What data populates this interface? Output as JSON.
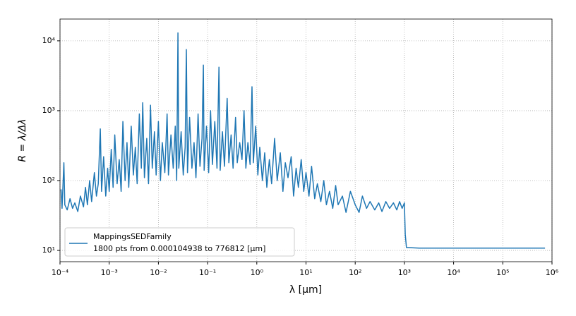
{
  "chart_data": {
    "type": "line",
    "xlabel": "λ [μm]",
    "ylabel": "R = λ/Δλ",
    "xscale": "log",
    "yscale": "log",
    "grid": true,
    "legend": "lower left",
    "xlim": [
      0.0001,
      1000000
    ],
    "ylim": [
      6.9,
      20500
    ],
    "xticks": [
      {
        "value": 0.0001,
        "label": "10⁻⁴"
      },
      {
        "value": 0.001,
        "label": "10⁻³"
      },
      {
        "value": 0.01,
        "label": "10⁻²"
      },
      {
        "value": 0.1,
        "label": "10⁻¹"
      },
      {
        "value": 1,
        "label": "10⁰"
      },
      {
        "value": 10,
        "label": "10¹"
      },
      {
        "value": 100,
        "label": "10²"
      },
      {
        "value": 1000,
        "label": "10³"
      },
      {
        "value": 10000,
        "label": "10⁴"
      },
      {
        "value": 100000,
        "label": "10⁵"
      },
      {
        "value": 1000000,
        "label": "10⁶"
      }
    ],
    "yticks": [
      {
        "value": 10,
        "label": "10¹"
      },
      {
        "value": 100,
        "label": "10²"
      },
      {
        "value": 1000,
        "label": "10³"
      },
      {
        "value": 10000,
        "label": "10⁴"
      }
    ],
    "series": [
      {
        "name": "MappingsSEDFamily",
        "legend_detail": "1800 pts from 0.000104938 to 776812 [μm]",
        "color": "#1f77b4",
        "x": [
          0.000105,
          0.00011,
          0.00012,
          0.000125,
          0.00014,
          0.00016,
          0.00018,
          0.0002,
          0.00023,
          0.00026,
          0.0003,
          0.00033,
          0.00036,
          0.0004,
          0.00044,
          0.0005,
          0.00055,
          0.0006,
          0.00066,
          0.0007,
          0.00077,
          0.00085,
          0.00093,
          0.001,
          0.0011,
          0.0012,
          0.0013,
          0.00145,
          0.0016,
          0.00175,
          0.0019,
          0.0021,
          0.0023,
          0.0025,
          0.0028,
          0.0031,
          0.0034,
          0.0037,
          0.0041,
          0.0045,
          0.0048,
          0.0052,
          0.0058,
          0.0063,
          0.0069,
          0.0075,
          0.0083,
          0.009,
          0.01,
          0.011,
          0.012,
          0.0135,
          0.015,
          0.016,
          0.018,
          0.02,
          0.022,
          0.0235,
          0.025,
          0.026,
          0.029,
          0.032,
          0.035,
          0.037,
          0.039,
          0.043,
          0.048,
          0.053,
          0.058,
          0.064,
          0.07,
          0.077,
          0.082,
          0.085,
          0.095,
          0.105,
          0.115,
          0.125,
          0.14,
          0.155,
          0.17,
          0.18,
          0.2,
          0.22,
          0.25,
          0.27,
          0.3,
          0.33,
          0.37,
          0.4,
          0.45,
          0.5,
          0.55,
          0.6,
          0.66,
          0.73,
          0.8,
          0.85,
          0.95,
          1.05,
          1.15,
          1.3,
          1.45,
          1.6,
          1.8,
          2,
          2.3,
          2.6,
          3,
          3.4,
          3.8,
          4.3,
          5,
          5.6,
          6.3,
          7,
          8,
          9,
          10,
          11.5,
          13,
          15,
          17,
          20,
          23,
          26,
          30,
          35,
          40,
          45,
          55,
          65,
          80,
          100,
          120,
          140,
          170,
          200,
          250,
          300,
          350,
          420,
          500,
          600,
          700,
          800,
          900,
          1000,
          1040,
          1100,
          2000,
          720000
        ],
        "values": [
          75,
          40,
          180,
          45,
          38,
          55,
          40,
          48,
          36,
          60,
          42,
          80,
          45,
          100,
          50,
          130,
          60,
          90,
          550,
          70,
          220,
          60,
          150,
          70,
          280,
          80,
          450,
          90,
          200,
          70,
          700,
          100,
          350,
          80,
          600,
          120,
          300,
          90,
          900,
          150,
          1300,
          110,
          400,
          90,
          1200,
          150,
          500,
          120,
          700,
          100,
          350,
          130,
          900,
          120,
          450,
          150,
          600,
          100,
          13000,
          150,
          500,
          120,
          300,
          7500,
          130,
          800,
          150,
          350,
          110,
          900,
          160,
          400,
          4500,
          140,
          600,
          130,
          1000,
          170,
          700,
          150,
          4200,
          140,
          500,
          160,
          1500,
          180,
          450,
          150,
          800,
          180,
          350,
          200,
          1000,
          150,
          350,
          170,
          2200,
          180,
          600,
          120,
          300,
          100,
          250,
          80,
          200,
          90,
          400,
          100,
          250,
          70,
          180,
          110,
          220,
          60,
          150,
          80,
          200,
          70,
          130,
          60,
          160,
          55,
          90,
          50,
          100,
          45,
          70,
          40,
          85,
          45,
          60,
          35,
          70,
          45,
          35,
          60,
          40,
          50,
          38,
          48,
          36,
          50,
          40,
          48,
          38,
          50,
          40,
          48,
          17,
          11,
          10.8,
          10.8
        ]
      }
    ]
  }
}
